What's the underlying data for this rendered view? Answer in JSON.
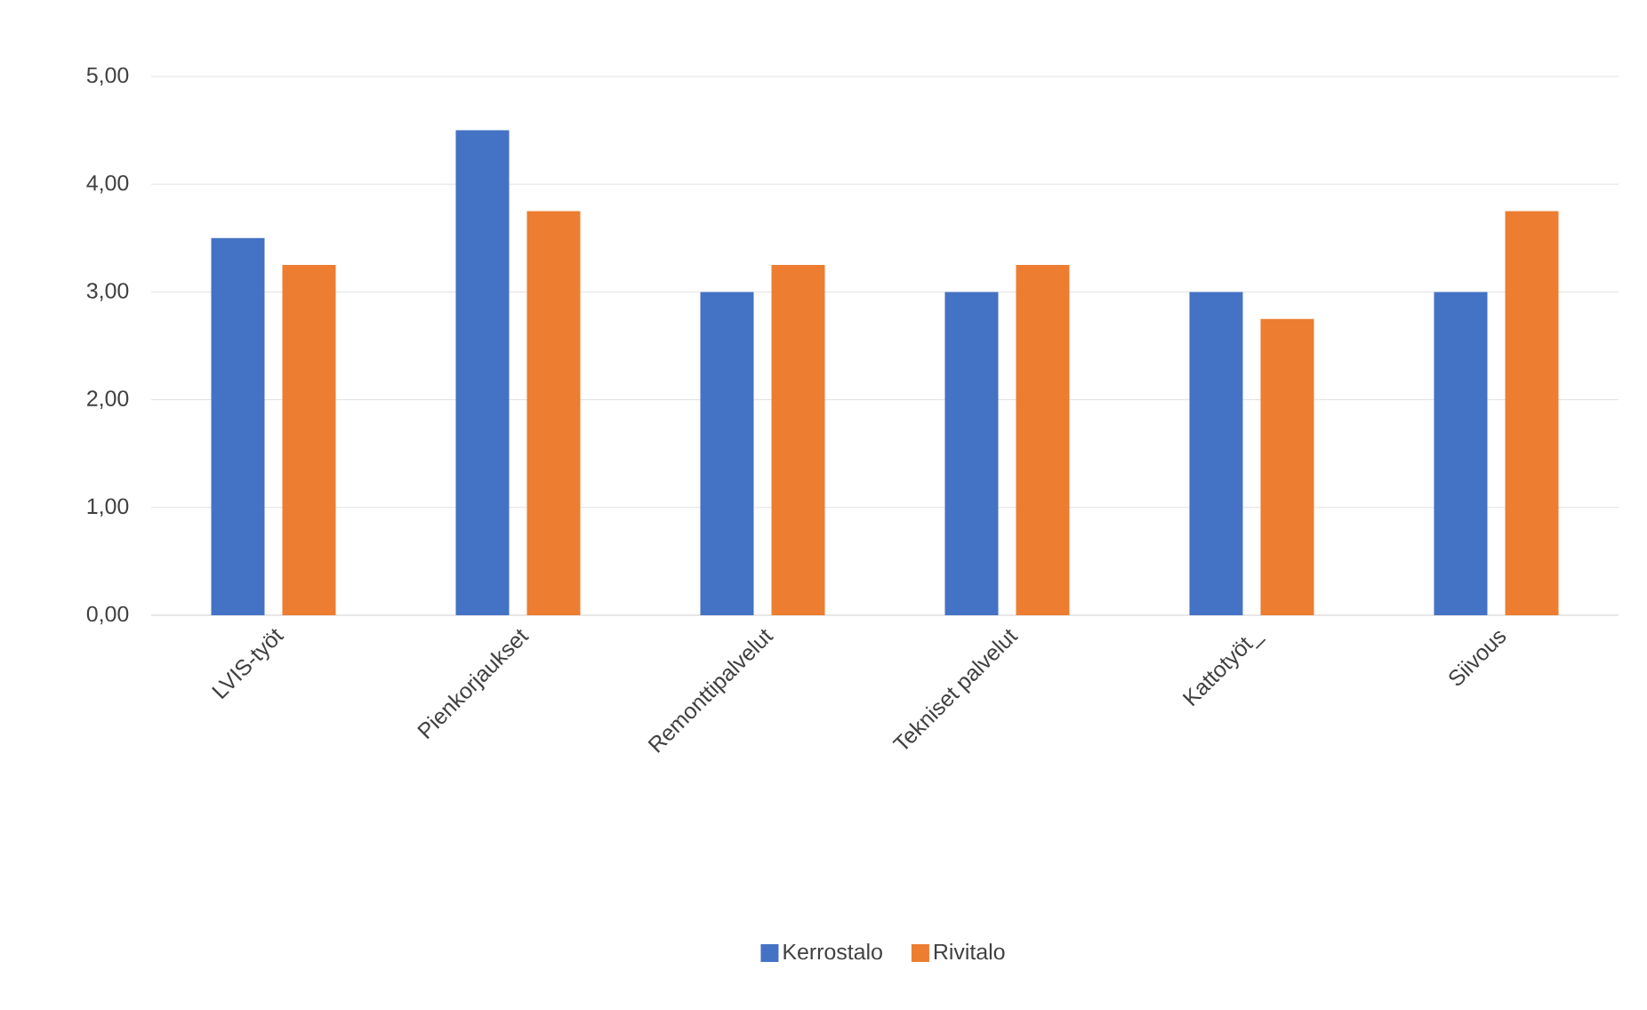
{
  "chart_data": {
    "type": "bar",
    "categories": [
      "LVIS-työt",
      "Pienkorjaukset",
      "Remonttipalvelut",
      "Tekniset palvelut",
      "Kattotyöt_",
      "Siivous"
    ],
    "series": [
      {
        "name": "Kerrostalo",
        "color": "#4472c4",
        "values": [
          3.5,
          4.5,
          3.0,
          3.0,
          3.0,
          3.0
        ]
      },
      {
        "name": "Rivitalo",
        "color": "#ed7d31",
        "values": [
          3.25,
          3.75,
          3.25,
          3.25,
          2.75,
          3.75
        ]
      }
    ],
    "ylim": [
      0,
      5
    ],
    "yticks": [
      {
        "value": 0,
        "label": "0,00"
      },
      {
        "value": 1,
        "label": "1,00"
      },
      {
        "value": 2,
        "label": "2,00"
      },
      {
        "value": 3,
        "label": "3,00"
      },
      {
        "value": 4,
        "label": "4,00"
      },
      {
        "value": 5,
        "label": "5,00"
      }
    ],
    "grid": "y",
    "legend": "bottom"
  }
}
